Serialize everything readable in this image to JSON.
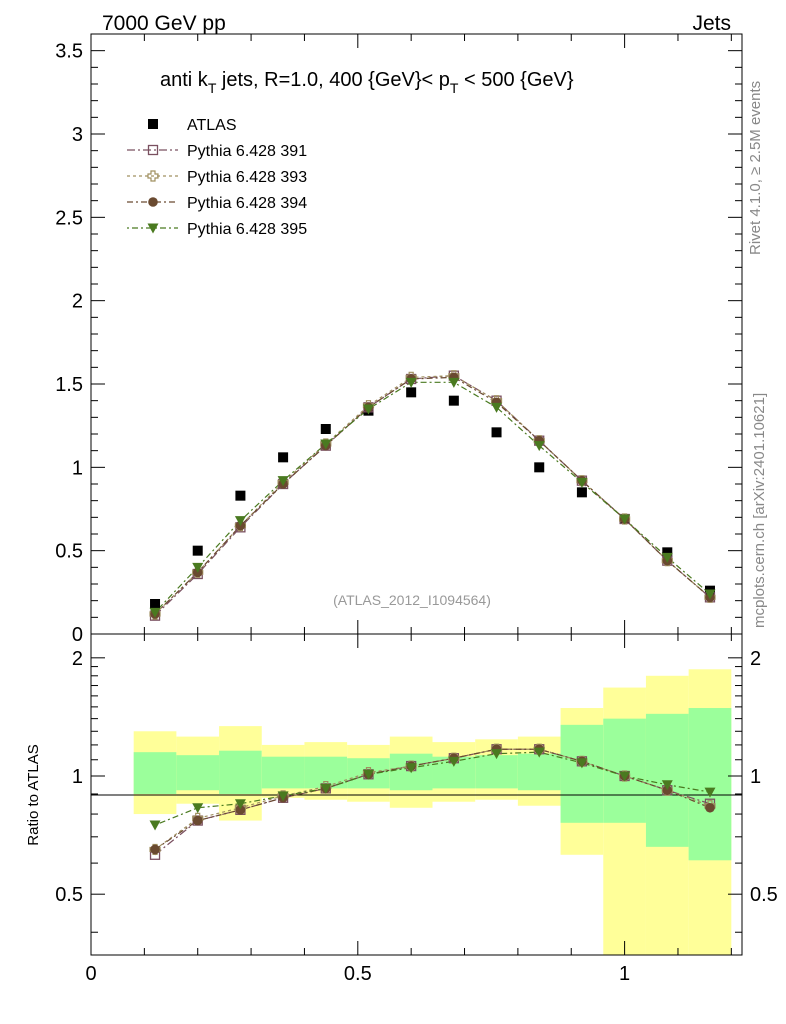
{
  "header": {
    "left_label": "7000 GeV pp",
    "right_label": "Jets",
    "side_label_top": "Rivet 4.1.0, ≥ 2.5M events",
    "side_label_bottom": "mcplots.cern.ch [arXiv:2401.10621]"
  },
  "chart_data": [
    {
      "type": "scatter",
      "panel": "main",
      "title_parts": {
        "a": "anti k",
        "a_sub": "T",
        "b": " jets, R=1.0,  400 {GeV}< p",
        "b_sub": "T",
        "c": " < 500 {GeV}"
      },
      "watermark": "(ATLAS_2012_I1094564)",
      "ylim": [
        0,
        3.6
      ],
      "xlim": [
        0,
        1.22
      ],
      "yticks": [
        0,
        0.5,
        1,
        1.5,
        2,
        2.5,
        3,
        3.5
      ],
      "ytick_labels": [
        "0",
        "0.5",
        "1",
        "1.5",
        "2",
        "2.5",
        "3",
        "3.5"
      ],
      "x": [
        0.12,
        0.2,
        0.28,
        0.36,
        0.44,
        0.52,
        0.6,
        0.68,
        0.76,
        0.84,
        0.92,
        1.0,
        1.08,
        1.16
      ],
      "series": [
        {
          "name": "ATLAS",
          "marker": "square-filled",
          "color": "#000000",
          "values": [
            0.18,
            0.5,
            0.83,
            1.06,
            1.23,
            1.34,
            1.45,
            1.4,
            1.21,
            1.0,
            0.85,
            0.69,
            0.49,
            0.26
          ]
        },
        {
          "name": "Pythia 6.428 391",
          "marker": "square-open",
          "color": "#7a5060",
          "values": [
            0.11,
            0.36,
            0.64,
            0.9,
            1.13,
            1.36,
            1.53,
            1.55,
            1.4,
            1.16,
            0.92,
            0.69,
            0.44,
            0.22
          ]
        },
        {
          "name": "Pythia 6.428 393",
          "marker": "cross-open",
          "color": "#a09060",
          "values": [
            0.12,
            0.37,
            0.65,
            0.91,
            1.14,
            1.37,
            1.54,
            1.55,
            1.4,
            1.16,
            0.92,
            0.69,
            0.44,
            0.22
          ]
        },
        {
          "name": "Pythia 6.428 394",
          "marker": "circle-filled",
          "color": "#6a4a30",
          "values": [
            0.12,
            0.37,
            0.65,
            0.9,
            1.13,
            1.36,
            1.53,
            1.54,
            1.39,
            1.16,
            0.92,
            0.69,
            0.44,
            0.22
          ]
        },
        {
          "name": "Pythia 6.428 395",
          "marker": "triangle-down-filled",
          "color": "#4a7a20",
          "values": [
            0.13,
            0.4,
            0.68,
            0.92,
            1.14,
            1.35,
            1.51,
            1.51,
            1.36,
            1.13,
            0.91,
            0.69,
            0.46,
            0.24
          ]
        }
      ]
    },
    {
      "type": "scatter",
      "panel": "ratio",
      "ylabel": "Ratio to ATLAS",
      "ylim": [
        0.35,
        2.3
      ],
      "yscale": "log",
      "xlim": [
        0,
        1.22
      ],
      "xticks": [
        0,
        0.5,
        1
      ],
      "xtick_labels": [
        "0",
        "0.5",
        "1"
      ],
      "yticks": [
        0.5,
        1,
        2
      ],
      "ytick_labels": [
        "0.5",
        "1",
        "2"
      ],
      "bands": {
        "edges": [
          0.08,
          0.16,
          0.24,
          0.32,
          0.4,
          0.48,
          0.56,
          0.64,
          0.72,
          0.8,
          0.88,
          0.96,
          1.04,
          1.12,
          1.2
        ],
        "inner_low": [
          0.9,
          0.92,
          0.9,
          0.93,
          0.93,
          0.93,
          0.92,
          0.93,
          0.93,
          0.92,
          0.76,
          0.76,
          0.66,
          0.61
        ],
        "inner_high": [
          1.15,
          1.13,
          1.16,
          1.12,
          1.12,
          1.11,
          1.14,
          1.12,
          1.13,
          1.14,
          1.35,
          1.4,
          1.44,
          1.49
        ],
        "outer_low": [
          0.8,
          0.85,
          0.77,
          0.88,
          0.87,
          0.86,
          0.83,
          0.86,
          0.87,
          0.84,
          0.63,
          0.35,
          0.35,
          0.35
        ],
        "outer_high": [
          1.3,
          1.26,
          1.34,
          1.2,
          1.22,
          1.2,
          1.26,
          1.22,
          1.24,
          1.26,
          1.49,
          1.68,
          1.8,
          1.87
        ],
        "inner_color": "#9bff9b",
        "outer_color": "#ffff99"
      },
      "x": [
        0.12,
        0.2,
        0.28,
        0.36,
        0.44,
        0.52,
        0.6,
        0.68,
        0.76,
        0.84,
        0.92,
        1.0,
        1.08,
        1.16
      ],
      "series": [
        {
          "name": "Pythia 6.428 391",
          "values": [
            0.63,
            0.77,
            0.82,
            0.88,
            0.93,
            1.01,
            1.06,
            1.11,
            1.17,
            1.17,
            1.09,
            1.0,
            0.92,
            0.85
          ]
        },
        {
          "name": "Pythia 6.428 393",
          "values": [
            0.65,
            0.78,
            0.83,
            0.89,
            0.94,
            1.02,
            1.06,
            1.11,
            1.17,
            1.17,
            1.09,
            1.0,
            0.92,
            0.84
          ]
        },
        {
          "name": "Pythia 6.428 394",
          "values": [
            0.65,
            0.77,
            0.82,
            0.88,
            0.93,
            1.01,
            1.06,
            1.11,
            1.17,
            1.17,
            1.09,
            1.0,
            0.92,
            0.83
          ]
        },
        {
          "name": "Pythia 6.428 395",
          "values": [
            0.75,
            0.83,
            0.85,
            0.89,
            0.93,
            1.01,
            1.05,
            1.09,
            1.14,
            1.15,
            1.08,
            1.0,
            0.95,
            0.91
          ]
        }
      ]
    }
  ]
}
